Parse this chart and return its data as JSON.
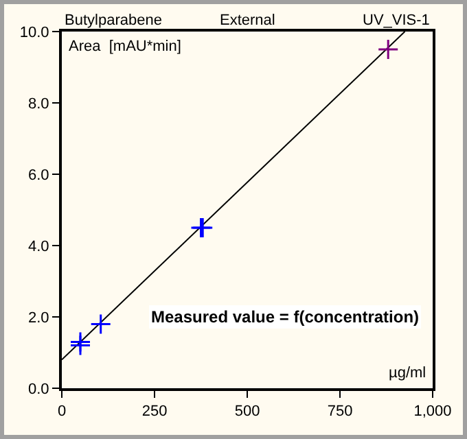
{
  "chart_data": {
    "type": "scatter",
    "title": "Butylparabene",
    "subtitle": "External",
    "ylabel": "Area  [mAU*min]",
    "xlabel": "µg/ml",
    "annotations": [
      "UV_VIS-1",
      "Measured value = f(concentration)"
    ],
    "xlim": [
      0,
      1000
    ],
    "xticks": [
      0,
      250,
      500,
      750,
      {
        "value": 1000,
        "label": "1,000"
      }
    ],
    "ylim": [
      0,
      10
    ],
    "yticks": [
      {
        "value": 0,
        "label": "0.0"
      },
      {
        "value": 2,
        "label": "2.0"
      },
      {
        "value": 4,
        "label": "4.0"
      },
      {
        "value": 6,
        "label": "6.0"
      },
      {
        "value": 8,
        "label": "8.0"
      },
      {
        "value": 10,
        "label": "10.0"
      }
    ],
    "grid": false,
    "legend": false,
    "series": [
      {
        "type": "line",
        "color": "#000000",
        "x": [
          0,
          925
        ],
        "values": [
          0.8,
          10
        ],
        "line_style": "solid",
        "marker": "none"
      },
      {
        "marker": "cross",
        "colors": [
          "#0000ff",
          "#0000ff",
          "#0000ff",
          "#0000ff",
          "#0000ff",
          "#800080"
        ],
        "x": [
          50,
          50,
          105,
          375,
          380,
          880
        ],
        "values": [
          1.2,
          1.3,
          1.8,
          4.5,
          4.5,
          9.5
        ]
      }
    ]
  }
}
